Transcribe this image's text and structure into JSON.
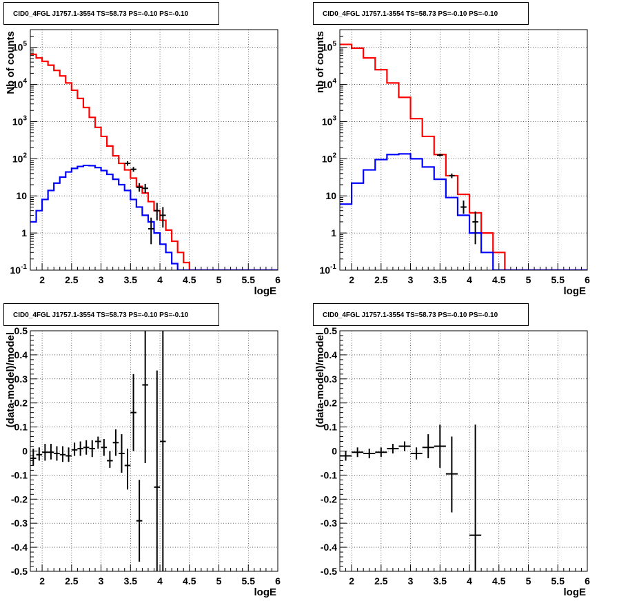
{
  "chart_data": [
    {
      "id": "counts_fine",
      "type": "line",
      "title": "CID0_4FGL J1757.1-3554 TS=58.73 PS=-0.10 PS=-0.10",
      "xlabel": "logE",
      "ylabel": "Nb of counts",
      "xlim": [
        1.8,
        6.0
      ],
      "ylim": [
        0.1,
        300000
      ],
      "yscale": "log",
      "grid": true,
      "xticks": [
        "2",
        "2.5",
        "3",
        "3.5",
        "4",
        "4.5",
        "5",
        "5.5",
        "6"
      ],
      "yticks": [
        {
          "base": "10",
          "exp": "-1",
          "value": 0.1
        },
        {
          "base": "1",
          "exp": "",
          "value": 1
        },
        {
          "base": "10",
          "exp": "",
          "value": 10
        },
        {
          "base": "10",
          "exp": "2",
          "value": 100
        },
        {
          "base": "10",
          "exp": "3",
          "value": 1000
        },
        {
          "base": "10",
          "exp": "4",
          "value": 10000
        },
        {
          "base": "10",
          "exp": "5",
          "value": 100000
        }
      ],
      "bin_edges": [
        1.8,
        1.9,
        2.0,
        2.1,
        2.2,
        2.3,
        2.4,
        2.5,
        2.6,
        2.7,
        2.8,
        2.9,
        3.0,
        3.1,
        3.2,
        3.3,
        3.4,
        3.5,
        3.6,
        3.7,
        3.8,
        3.9,
        4.0,
        4.1,
        4.2,
        4.3,
        4.4,
        4.5,
        4.6,
        4.7,
        4.8,
        4.9,
        5.0,
        5.1,
        5.2,
        5.3,
        5.4,
        5.5,
        5.6,
        5.7,
        5.8,
        5.9,
        6.0
      ],
      "series": [
        {
          "name": "",
          "style": "step",
          "color": "#ff0000",
          "values": [
            65000,
            52000,
            42000,
            33000,
            24000,
            17000,
            11000,
            7000,
            4200,
            2400,
            1300,
            700,
            400,
            220,
            120,
            75,
            50,
            30,
            18,
            12,
            7,
            4,
            2.2,
            1.2,
            0.6,
            0.3,
            0.16,
            0.1,
            0.1,
            0.1,
            0.1,
            0.1,
            0.1,
            0.1,
            0.1,
            0.1,
            0.1,
            0.1,
            0.1,
            0.1,
            0.1,
            0.1
          ]
        },
        {
          "name": "",
          "style": "step",
          "color": "#0000ff",
          "values": [
            2,
            4,
            8,
            14,
            22,
            32,
            44,
            55,
            62,
            66,
            65,
            58,
            48,
            38,
            28,
            20,
            14,
            8,
            5,
            3,
            2,
            1,
            0.5,
            0.3,
            0.15,
            0.1,
            0.1,
            0.1,
            0.1,
            0.1,
            0.1,
            0.1,
            0.1,
            0.1,
            0.1,
            0.1,
            0.1,
            0.1,
            0.1,
            0.1,
            0.1,
            0.1
          ]
        }
      ],
      "points": [
        {
          "x": 3.45,
          "y": 75,
          "ylo": 65,
          "yhi": 86
        },
        {
          "x": 3.55,
          "y": 52,
          "ylo": 45,
          "yhi": 60
        },
        {
          "x": 3.65,
          "y": 17,
          "ylo": 13,
          "yhi": 22
        },
        {
          "x": 3.75,
          "y": 16,
          "ylo": 12,
          "yhi": 21
        },
        {
          "x": 3.85,
          "y": 1.3,
          "ylo": 0.5,
          "yhi": 2.6
        },
        {
          "x": 3.95,
          "y": 4,
          "ylo": 2.2,
          "yhi": 6.5
        },
        {
          "x": 4.05,
          "y": 3,
          "ylo": 1.4,
          "yhi": 5
        }
      ]
    },
    {
      "id": "counts_coarse",
      "type": "line",
      "title": "CID0_4FGL J1757.1-3554 TS=58.73 PS=-0.10 PS=-0.10",
      "xlabel": "logE",
      "ylabel": "nb of counts",
      "xlim": [
        1.8,
        6.0
      ],
      "ylim": [
        0.1,
        300000
      ],
      "yscale": "log",
      "grid": true,
      "xticks": [
        "2",
        "2.5",
        "3",
        "3.5",
        "4",
        "4.5",
        "5",
        "5.5",
        "6"
      ],
      "yticks": [
        {
          "base": "10",
          "exp": "-1",
          "value": 0.1
        },
        {
          "base": "1",
          "exp": "",
          "value": 1
        },
        {
          "base": "10",
          "exp": "",
          "value": 10
        },
        {
          "base": "10",
          "exp": "2",
          "value": 100
        },
        {
          "base": "10",
          "exp": "3",
          "value": 1000
        },
        {
          "base": "10",
          "exp": "4",
          "value": 10000
        },
        {
          "base": "10",
          "exp": "5",
          "value": 100000
        }
      ],
      "bin_edges": [
        1.8,
        2.0,
        2.2,
        2.4,
        2.6,
        2.8,
        3.0,
        3.2,
        3.4,
        3.6,
        3.8,
        4.0,
        4.2,
        4.4,
        4.6,
        4.8,
        5.0,
        5.2,
        5.4,
        5.6,
        5.8,
        6.0
      ],
      "series": [
        {
          "name": "",
          "style": "step",
          "color": "#ff0000",
          "values": [
            120000,
            95000,
            52000,
            25000,
            11000,
            4500,
            1200,
            400,
            130,
            35,
            11,
            3.5,
            1,
            0.3,
            0.1,
            0.1,
            0.1,
            0.1,
            0.1,
            0.1,
            0.1
          ]
        },
        {
          "name": "",
          "style": "step",
          "color": "#0000ff",
          "values": [
            6,
            22,
            50,
            95,
            130,
            135,
            100,
            60,
            28,
            9,
            3,
            1,
            0.3,
            0.1,
            0.1,
            0.1,
            0.1,
            0.1,
            0.1,
            0.1,
            0.1
          ]
        }
      ],
      "points": [
        {
          "x": 3.5,
          "y": 125,
          "ylo": 115,
          "yhi": 136
        },
        {
          "x": 3.7,
          "y": 35,
          "ylo": 30,
          "yhi": 40
        },
        {
          "x": 3.9,
          "y": 5,
          "ylo": 3.3,
          "yhi": 7.5
        },
        {
          "x": 4.1,
          "y": 2,
          "ylo": 0.5,
          "yhi": 3.8
        }
      ]
    },
    {
      "id": "residuals_fine",
      "type": "scatter",
      "title": "CID0_4FGL J1757.1-3554 TS=58.73 PS=-0.10 PS=-0.10",
      "xlabel": "logE",
      "ylabel": "(data-model)/model",
      "xlim": [
        1.8,
        6.0
      ],
      "ylim": [
        -0.5,
        0.5
      ],
      "grid": true,
      "xticks": [
        "2",
        "2.5",
        "3",
        "3.5",
        "4",
        "4.5",
        "5",
        "5.5",
        "6"
      ],
      "yticks": [
        "-0.5",
        "-0.4",
        "-0.3",
        "-0.2",
        "-0.1",
        "0",
        "0.1",
        "0.2",
        "0.3",
        "0.4",
        "0.5"
      ],
      "xerr": 0.05,
      "points": [
        {
          "x": 1.85,
          "y": -0.03,
          "ylo": -0.06,
          "yhi": 0.01
        },
        {
          "x": 1.95,
          "y": -0.015,
          "ylo": -0.04,
          "yhi": 0.015
        },
        {
          "x": 2.05,
          "y": -0.005,
          "ylo": -0.04,
          "yhi": 0.03
        },
        {
          "x": 2.15,
          "y": -0.005,
          "ylo": -0.035,
          "yhi": 0.03
        },
        {
          "x": 2.25,
          "y": -0.01,
          "ylo": -0.04,
          "yhi": 0.02
        },
        {
          "x": 2.35,
          "y": -0.015,
          "ylo": -0.045,
          "yhi": 0.02
        },
        {
          "x": 2.45,
          "y": -0.02,
          "ylo": -0.045,
          "yhi": 0.015
        },
        {
          "x": 2.55,
          "y": 0.005,
          "ylo": -0.02,
          "yhi": 0.035
        },
        {
          "x": 2.65,
          "y": 0.01,
          "ylo": -0.02,
          "yhi": 0.04
        },
        {
          "x": 2.75,
          "y": 0.015,
          "ylo": -0.015,
          "yhi": 0.045
        },
        {
          "x": 2.85,
          "y": 0.01,
          "ylo": -0.025,
          "yhi": 0.045
        },
        {
          "x": 2.95,
          "y": 0.04,
          "ylo": 0.01,
          "yhi": 0.06
        },
        {
          "x": 3.05,
          "y": 0.015,
          "ylo": -0.02,
          "yhi": 0.05
        },
        {
          "x": 3.15,
          "y": -0.04,
          "ylo": -0.07,
          "yhi": 0.0
        },
        {
          "x": 3.25,
          "y": 0.035,
          "ylo": -0.02,
          "yhi": 0.09
        },
        {
          "x": 3.35,
          "y": -0.01,
          "ylo": -0.09,
          "yhi": 0.07
        },
        {
          "x": 3.45,
          "y": -0.06,
          "ylo": -0.16,
          "yhi": 0.01
        },
        {
          "x": 3.55,
          "y": 0.16,
          "ylo": 0.0,
          "yhi": 0.32
        },
        {
          "x": 3.65,
          "y": -0.29,
          "ylo": -0.46,
          "yhi": -0.12
        },
        {
          "x": 3.75,
          "y": 0.275,
          "ylo": -0.05,
          "yhi": 0.5
        },
        {
          "x": 3.95,
          "y": -0.15,
          "ylo": -0.5,
          "yhi": 0.335
        },
        {
          "x": 4.05,
          "y": 0.04,
          "ylo": -0.5,
          "yhi": 0.5
        }
      ]
    },
    {
      "id": "residuals_coarse",
      "type": "scatter",
      "title": "CID0_4FGL J1757.1-3554 TS=58.73 PS=-0.10 PS=-0.10",
      "xlabel": "logE",
      "ylabel": "(data-model)/model",
      "xlim": [
        1.8,
        6.0
      ],
      "ylim": [
        -0.5,
        0.5
      ],
      "grid": true,
      "xticks": [
        "2",
        "2.5",
        "3",
        "3.5",
        "4",
        "4.5",
        "5",
        "5.5",
        "6"
      ],
      "yticks": [
        "-0.5",
        "-0.4",
        "-0.3",
        "-0.2",
        "-0.1",
        "0",
        "0.1",
        "0.2",
        "0.3",
        "0.4",
        "0.5"
      ],
      "xerr": 0.1,
      "points": [
        {
          "x": 1.9,
          "y": -0.02,
          "ylo": -0.04,
          "yhi": 0.0
        },
        {
          "x": 2.1,
          "y": -0.005,
          "ylo": -0.025,
          "yhi": 0.015
        },
        {
          "x": 2.3,
          "y": -0.01,
          "ylo": -0.03,
          "yhi": 0.01
        },
        {
          "x": 2.5,
          "y": -0.005,
          "ylo": -0.025,
          "yhi": 0.015
        },
        {
          "x": 2.7,
          "y": 0.01,
          "ylo": -0.01,
          "yhi": 0.03
        },
        {
          "x": 2.9,
          "y": 0.02,
          "ylo": 0.0,
          "yhi": 0.04
        },
        {
          "x": 3.1,
          "y": -0.01,
          "ylo": -0.035,
          "yhi": 0.015
        },
        {
          "x": 3.3,
          "y": 0.015,
          "ylo": -0.03,
          "yhi": 0.07
        },
        {
          "x": 3.5,
          "y": 0.02,
          "ylo": -0.07,
          "yhi": 0.11
        },
        {
          "x": 3.7,
          "y": -0.095,
          "ylo": -0.255,
          "yhi": 0.06
        },
        {
          "x": 4.1,
          "y": -0.35,
          "ylo": -0.5,
          "yhi": 0.11
        }
      ]
    }
  ]
}
